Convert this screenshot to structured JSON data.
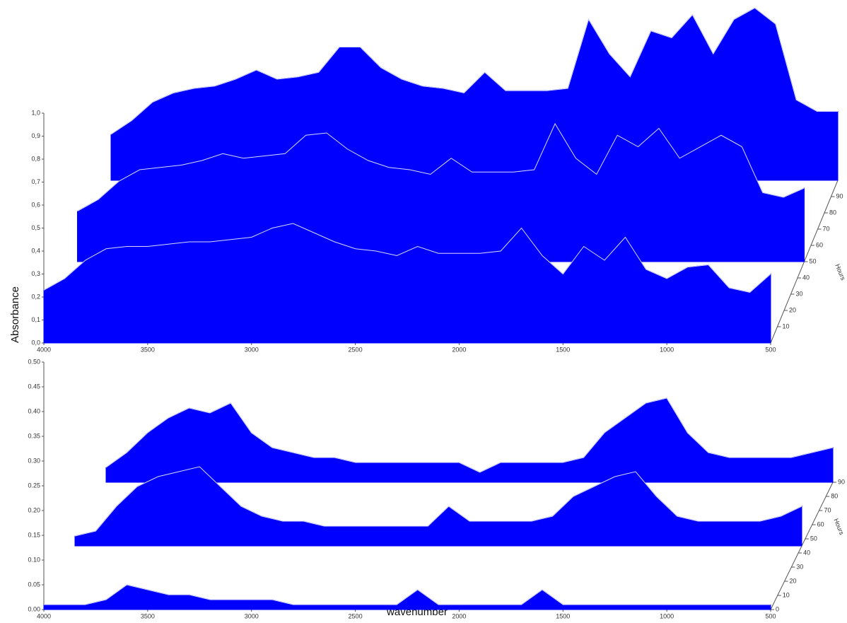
{
  "chart_data": [
    {
      "type": "waterfall",
      "ylabel": "Absorbance",
      "zlabel": "Hours",
      "color": "#0000ff",
      "x": [
        4000,
        3900,
        3800,
        3700,
        3600,
        3500,
        3400,
        3300,
        3200,
        3100,
        3000,
        2900,
        2800,
        2700,
        2600,
        2500,
        2400,
        2300,
        2200,
        2100,
        2000,
        1900,
        1800,
        1700,
        1600,
        1500,
        1400,
        1300,
        1200,
        1100,
        1000,
        900,
        800,
        700,
        600,
        500
      ],
      "xlim": [
        4000,
        500
      ],
      "xticks": [
        4000,
        3500,
        3000,
        2500,
        2000,
        1500,
        1000,
        500
      ],
      "ylim": [
        0,
        1
      ],
      "yticks": [
        {
          "value": 0,
          "label": "0,0"
        },
        {
          "value": 0.1,
          "label": "0,1"
        },
        {
          "value": 0.2,
          "label": "0,2"
        },
        {
          "value": 0.3,
          "label": "0,3"
        },
        {
          "value": 0.4,
          "label": "0,4"
        },
        {
          "value": 0.5,
          "label": "0,5"
        },
        {
          "value": 0.6,
          "label": "0,6"
        },
        {
          "value": 0.7,
          "label": "0,7"
        },
        {
          "value": 0.8,
          "label": "0,8"
        },
        {
          "value": 0.9,
          "label": "0,9"
        },
        {
          "value": 1,
          "label": "1,0"
        }
      ],
      "zlim": [
        0,
        100
      ],
      "zticks": [
        10,
        20,
        30,
        40,
        50,
        60,
        70,
        80,
        90
      ],
      "series": [
        {
          "z": 100,
          "values": [
            0.2,
            0.26,
            0.34,
            0.38,
            0.4,
            0.41,
            0.44,
            0.48,
            0.44,
            0.45,
            0.47,
            0.58,
            0.58,
            0.49,
            0.44,
            0.41,
            0.4,
            0.38,
            0.47,
            0.39,
            0.39,
            0.39,
            0.4,
            0.7,
            0.55,
            0.45,
            0.65,
            0.62,
            0.72,
            0.55,
            0.7,
            0.75,
            0.68,
            0.35,
            0.3,
            0.3
          ]
        },
        {
          "z": 50,
          "values": [
            0.22,
            0.27,
            0.35,
            0.4,
            0.41,
            0.42,
            0.44,
            0.47,
            0.45,
            0.46,
            0.47,
            0.55,
            0.56,
            0.49,
            0.44,
            0.41,
            0.4,
            0.38,
            0.45,
            0.39,
            0.39,
            0.39,
            0.4,
            0.6,
            0.45,
            0.38,
            0.55,
            0.5,
            0.58,
            0.45,
            0.5,
            0.55,
            0.5,
            0.3,
            0.28,
            0.32
          ]
        },
        {
          "z": 0,
          "values": [
            0.23,
            0.28,
            0.36,
            0.41,
            0.42,
            0.42,
            0.43,
            0.44,
            0.44,
            0.45,
            0.46,
            0.5,
            0.52,
            0.48,
            0.44,
            0.41,
            0.4,
            0.38,
            0.42,
            0.39,
            0.39,
            0.39,
            0.4,
            0.5,
            0.38,
            0.3,
            0.42,
            0.36,
            0.46,
            0.32,
            0.28,
            0.33,
            0.34,
            0.24,
            0.22,
            0.3
          ]
        }
      ]
    },
    {
      "type": "waterfall",
      "xlabel": "wavenumber",
      "zlabel": "Hours",
      "color": "#0000ff",
      "x": [
        4000,
        3900,
        3800,
        3700,
        3600,
        3500,
        3400,
        3300,
        3200,
        3100,
        3000,
        2900,
        2800,
        2700,
        2600,
        2500,
        2400,
        2300,
        2200,
        2100,
        2000,
        1900,
        1800,
        1700,
        1600,
        1500,
        1400,
        1300,
        1200,
        1100,
        1000,
        900,
        800,
        700,
        600,
        500
      ],
      "xlim": [
        4000,
        500
      ],
      "xticks": [
        4000,
        3500,
        3000,
        2500,
        2000,
        1500,
        1000,
        500
      ],
      "ylim": [
        0,
        0.5
      ],
      "yticks": [
        {
          "value": 0,
          "label": "0.00"
        },
        {
          "value": 0.05,
          "label": "0.05"
        },
        {
          "value": 0.1,
          "label": "0.10"
        },
        {
          "value": 0.15,
          "label": "0.15"
        },
        {
          "value": 0.2,
          "label": "0.20"
        },
        {
          "value": 0.25,
          "label": "0.25"
        },
        {
          "value": 0.3,
          "label": "0.30"
        },
        {
          "value": 0.35,
          "label": "0.35"
        },
        {
          "value": 0.4,
          "label": "0.40"
        },
        {
          "value": 0.45,
          "label": "0.45"
        },
        {
          "value": 0.5,
          "label": "0.50"
        }
      ],
      "zlim": [
        0,
        90
      ],
      "zticks": [
        0,
        10,
        20,
        30,
        40,
        50,
        60,
        70,
        80,
        90
      ],
      "series": [
        {
          "z": 90,
          "values": [
            0.03,
            0.06,
            0.1,
            0.13,
            0.15,
            0.14,
            0.16,
            0.1,
            0.07,
            0.06,
            0.05,
            0.05,
            0.04,
            0.04,
            0.04,
            0.04,
            0.04,
            0.04,
            0.02,
            0.04,
            0.04,
            0.04,
            0.04,
            0.05,
            0.1,
            0.13,
            0.16,
            0.17,
            0.1,
            0.06,
            0.05,
            0.05,
            0.05,
            0.05,
            0.06,
            0.07
          ]
        },
        {
          "z": 45,
          "values": [
            0.02,
            0.03,
            0.08,
            0.12,
            0.14,
            0.15,
            0.16,
            0.12,
            0.08,
            0.06,
            0.05,
            0.05,
            0.04,
            0.04,
            0.04,
            0.04,
            0.04,
            0.04,
            0.08,
            0.05,
            0.05,
            0.05,
            0.05,
            0.06,
            0.1,
            0.12,
            0.14,
            0.15,
            0.1,
            0.06,
            0.05,
            0.05,
            0.05,
            0.05,
            0.06,
            0.08
          ]
        },
        {
          "z": 0,
          "values": [
            0.01,
            0.01,
            0.01,
            0.02,
            0.05,
            0.04,
            0.03,
            0.03,
            0.02,
            0.02,
            0.02,
            0.02,
            0.01,
            0.01,
            0.01,
            0.01,
            0.01,
            0.01,
            0.04,
            0.01,
            0.01,
            0.01,
            0.01,
            0.01,
            0.04,
            0.01,
            0.01,
            0.01,
            0.01,
            0.01,
            0.01,
            0.01,
            0.01,
            0.01,
            0.01,
            0.01
          ]
        }
      ]
    }
  ]
}
